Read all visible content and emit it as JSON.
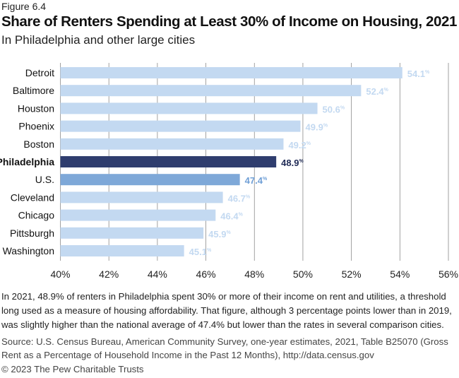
{
  "figure_label": "Figure 6.4",
  "colors": {
    "default": "#c3d9f1",
    "highlight": "#2f3d6e",
    "us": "#7ea8d8",
    "grid": "#8a8a8a",
    "default_label": "#c3d9f1",
    "us_label": "#6f9fd6",
    "highlight_label": "#1f2a55"
  },
  "chart_data": {
    "type": "bar",
    "orientation": "horizontal",
    "title": "Share of Renters Spending at Least 30% of Income on Housing, 2021",
    "subtitle": "In Philadelphia and other large cities",
    "categories": [
      "Detroit",
      "Baltimore",
      "Houston",
      "Phoenix",
      "Boston",
      "Philadelphia",
      "U.S.",
      "Cleveland",
      "Chicago",
      "Pittsburgh",
      "Washington"
    ],
    "values": [
      54.1,
      52.4,
      50.6,
      49.9,
      49.2,
      48.9,
      47.4,
      46.7,
      46.4,
      45.9,
      45.1
    ],
    "highlight": [
      "Philadelphia",
      "U.S."
    ],
    "xlim": [
      40,
      56
    ],
    "xticks": [
      40,
      42,
      44,
      46,
      48,
      50,
      52,
      54,
      56
    ],
    "tick_labels": [
      "40%",
      "42%",
      "44%",
      "46%",
      "48%",
      "50%",
      "52%",
      "54%",
      "56%"
    ],
    "value_suffix": "%",
    "grid": true,
    "xlabel": "",
    "ylabel": ""
  },
  "note": "In 2021, 48.9% of renters in Philadelphia spent 30% or more of their income on rent and utilities, a threshold long used as a measure of housing affordability. That figure, although 3 percentage points lower than in 2019, was slightly higher than the national average of 47.4% but lower than the rates in several comparison cities.",
  "source": "Source: U.S. Census Bureau, American Community Survey, one-year estimates, 2021, Table B25070 (Gross Rent as a Percentage of Household Income in the Past 12 Months), http://data.census.gov",
  "copyright": "© 2023 The Pew Charitable Trusts"
}
